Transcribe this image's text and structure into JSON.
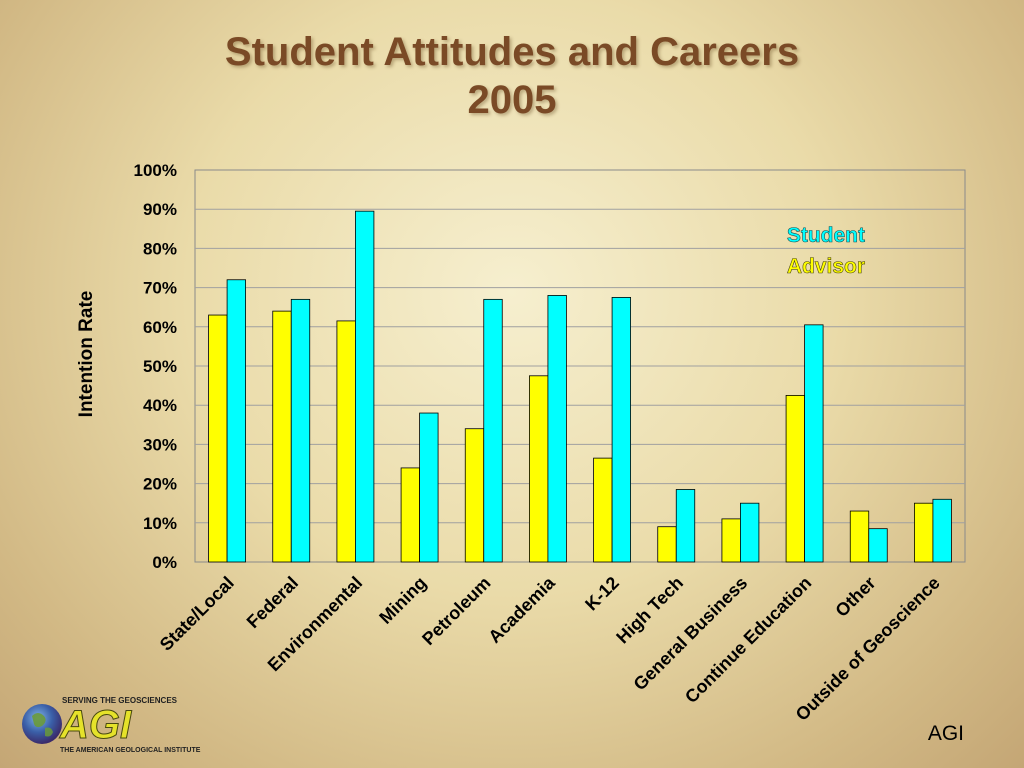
{
  "slide": {
    "title_line1": "Student Attitudes and Careers",
    "title_line2": "2005",
    "footer": "AGI",
    "logo": {
      "tagline": "SERVING THE GEOSCIENCES",
      "wordmark": "AGI",
      "org_name": "THE AMERICAN GEOLOGICAL INSTITUTE"
    }
  },
  "chart_data": {
    "type": "bar",
    "ylabel": "Intention Rate",
    "xlabel": "",
    "ylim": [
      0,
      100
    ],
    "yticks": [
      0,
      10,
      20,
      30,
      40,
      50,
      60,
      70,
      80,
      90,
      100
    ],
    "ytick_labels": [
      "0%",
      "10%",
      "20%",
      "30%",
      "40%",
      "50%",
      "60%",
      "70%",
      "80%",
      "90%",
      "100%"
    ],
    "categories": [
      "State/Local",
      "Federal",
      "Environmental",
      "Mining",
      "Petroleum",
      "Academia",
      "K-12",
      "High Tech",
      "General Business",
      "Continue Education",
      "Other",
      "Outside of Geoscience"
    ],
    "series": [
      {
        "name": "Advisor",
        "color": "#ffff00",
        "values": [
          63,
          64,
          61.5,
          24,
          34,
          47.5,
          26.5,
          9,
          11,
          42.5,
          13,
          15
        ]
      },
      {
        "name": "Student",
        "color": "#00ffff",
        "values": [
          72,
          67,
          89.5,
          38,
          67,
          68,
          67.5,
          18.5,
          15,
          60.5,
          8.5,
          16
        ]
      }
    ],
    "legend": {
      "placement": "top-right",
      "entries": [
        {
          "label": "Student",
          "color": "#00ffff"
        },
        {
          "label": "Advisor",
          "color": "#ffff00"
        }
      ]
    },
    "grid": true
  }
}
